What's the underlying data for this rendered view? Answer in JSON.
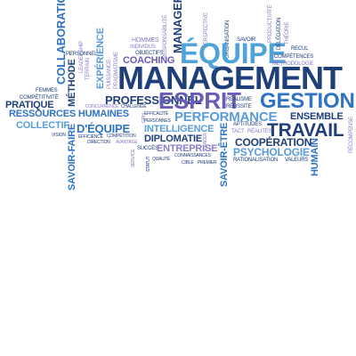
{
  "cloud": {
    "words": {
      "management": "MANAGEMENT",
      "equipe_big": "ÉQUIPE",
      "gestion": "GESTION",
      "esprit": "ESPRIT",
      "performance": "PERFORMANCE",
      "travail": "TRAVAIL",
      "professionnel": "PROFESSIONNEL",
      "ressources_humaines": "RESSOURCES HUMAINES",
      "pratique": "PRATIQUE",
      "collectif": "COLLECTIF",
      "intelligence": "INTELLIGENCE",
      "diplomatie": "DIPLOMATIE",
      "entreprise": "ENTREPRISE",
      "cooperation": "COOPÉRATION",
      "psychologie": "PSYCHOLOGIE",
      "ensemble": "ENSEMBLE",
      "coaching": "COACHING",
      "manager": "MANAGER",
      "collaboration": "COLLABORATION",
      "methode": "MÉTHODE",
      "savoir_faire": "SAVOIR-FAIRE",
      "savoir_etre": "SAVOIR-ÊTRE",
      "humain": "HUMAIN",
      "dequipe": "D'ÉQUIPE",
      "experience": "EXPÉRIENCE",
      "objectifs": "OBJECTIFS",
      "hommes": "HOMMES",
      "individus": "INDIVIDUS",
      "responsabilite": "RESPONSABILITÉ",
      "perspective": "PERSPECTIVE",
      "organisation": "ORGANISATION",
      "savoir": "SAVOIR",
      "productivite": "PRODUCTIVITÉ",
      "delegation": "DÉLÉGATION",
      "theorie": "THÉORIE",
      "recul": "RECUL",
      "competences": "COMPÉTENCES",
      "methodologie": "MÉTHODOLOGIE",
      "personnel": "PERSONNEL",
      "leadership": "LEADERSHIP",
      "terrain": "TERRAIN",
      "femmes": "FEMMES",
      "competitivite": "COMPÉTITIVITÉ",
      "pragmatisme": "PRAGMATISME",
      "puissance": "PUISSANCE",
      "realisme": "RÉALISME",
      "reussite": "RÉUSSITE",
      "challenge": "CHALLENGE",
      "concurrence": "CONCURRENCE",
      "efficacite": "EFFICACITÉ",
      "personnes": "PERSONNES",
      "vision": "VISION",
      "efficience": "EFFICIENCE",
      "direction": "DIRECTION",
      "competition": "COMPÉTITION",
      "avantage": "AVANTAGE",
      "succes": "SUCCÈS",
      "qualite": "QUALITÉ",
      "connaissances": "CONNAISSANCES",
      "cible": "CIBLE",
      "premier": "PREMIER",
      "aptitudes": "APTITUDES",
      "tact": "TACT",
      "realites": "RÉALITÉS",
      "rationalisation": "RATIONALISATION",
      "valeurs": "VALEURS",
      "recompense": "RÉCOMPENSE",
      "leader": "LEADER",
      "service": "SERVICE",
      "statut": "STATUT",
      "grh": "GRH"
    }
  }
}
